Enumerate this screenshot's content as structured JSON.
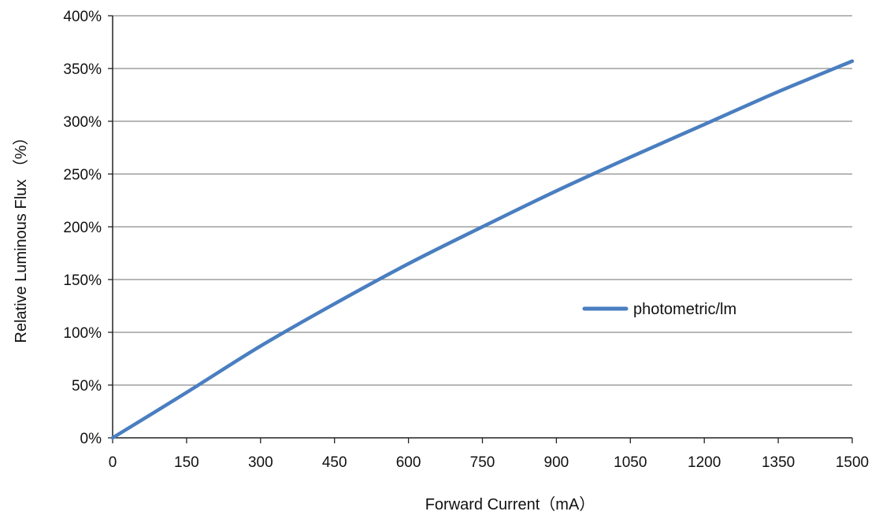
{
  "chart_data": {
    "type": "line",
    "xlabel": "Forward Current（mA）",
    "ylabel": "Relative Luminous Flux （%）",
    "xlim": [
      0,
      1500
    ],
    "ylim": [
      0,
      400
    ],
    "x_ticks": [
      0,
      150,
      300,
      450,
      600,
      750,
      900,
      1050,
      1200,
      1350,
      1500
    ],
    "x_tick_labels": [
      "0",
      "150",
      "300",
      "450",
      "600",
      "750",
      "900",
      "1050",
      "1200",
      "1350",
      "1500"
    ],
    "y_ticks": [
      0,
      50,
      100,
      150,
      200,
      250,
      300,
      350,
      400
    ],
    "y_tick_labels": [
      "0%",
      "50%",
      "100%",
      "150%",
      "200%",
      "250%",
      "300%",
      "350%",
      "400%"
    ],
    "grid": "horizontal",
    "legend_position": "right-middle",
    "series": [
      {
        "name": "photometric/lm",
        "color": "#4a7ec0",
        "x": [
          0,
          150,
          300,
          450,
          600,
          750,
          900,
          1050,
          1200,
          1350,
          1500
        ],
        "y": [
          0,
          43,
          87,
          127,
          165,
          200,
          234,
          266,
          297,
          328,
          357
        ]
      }
    ]
  }
}
